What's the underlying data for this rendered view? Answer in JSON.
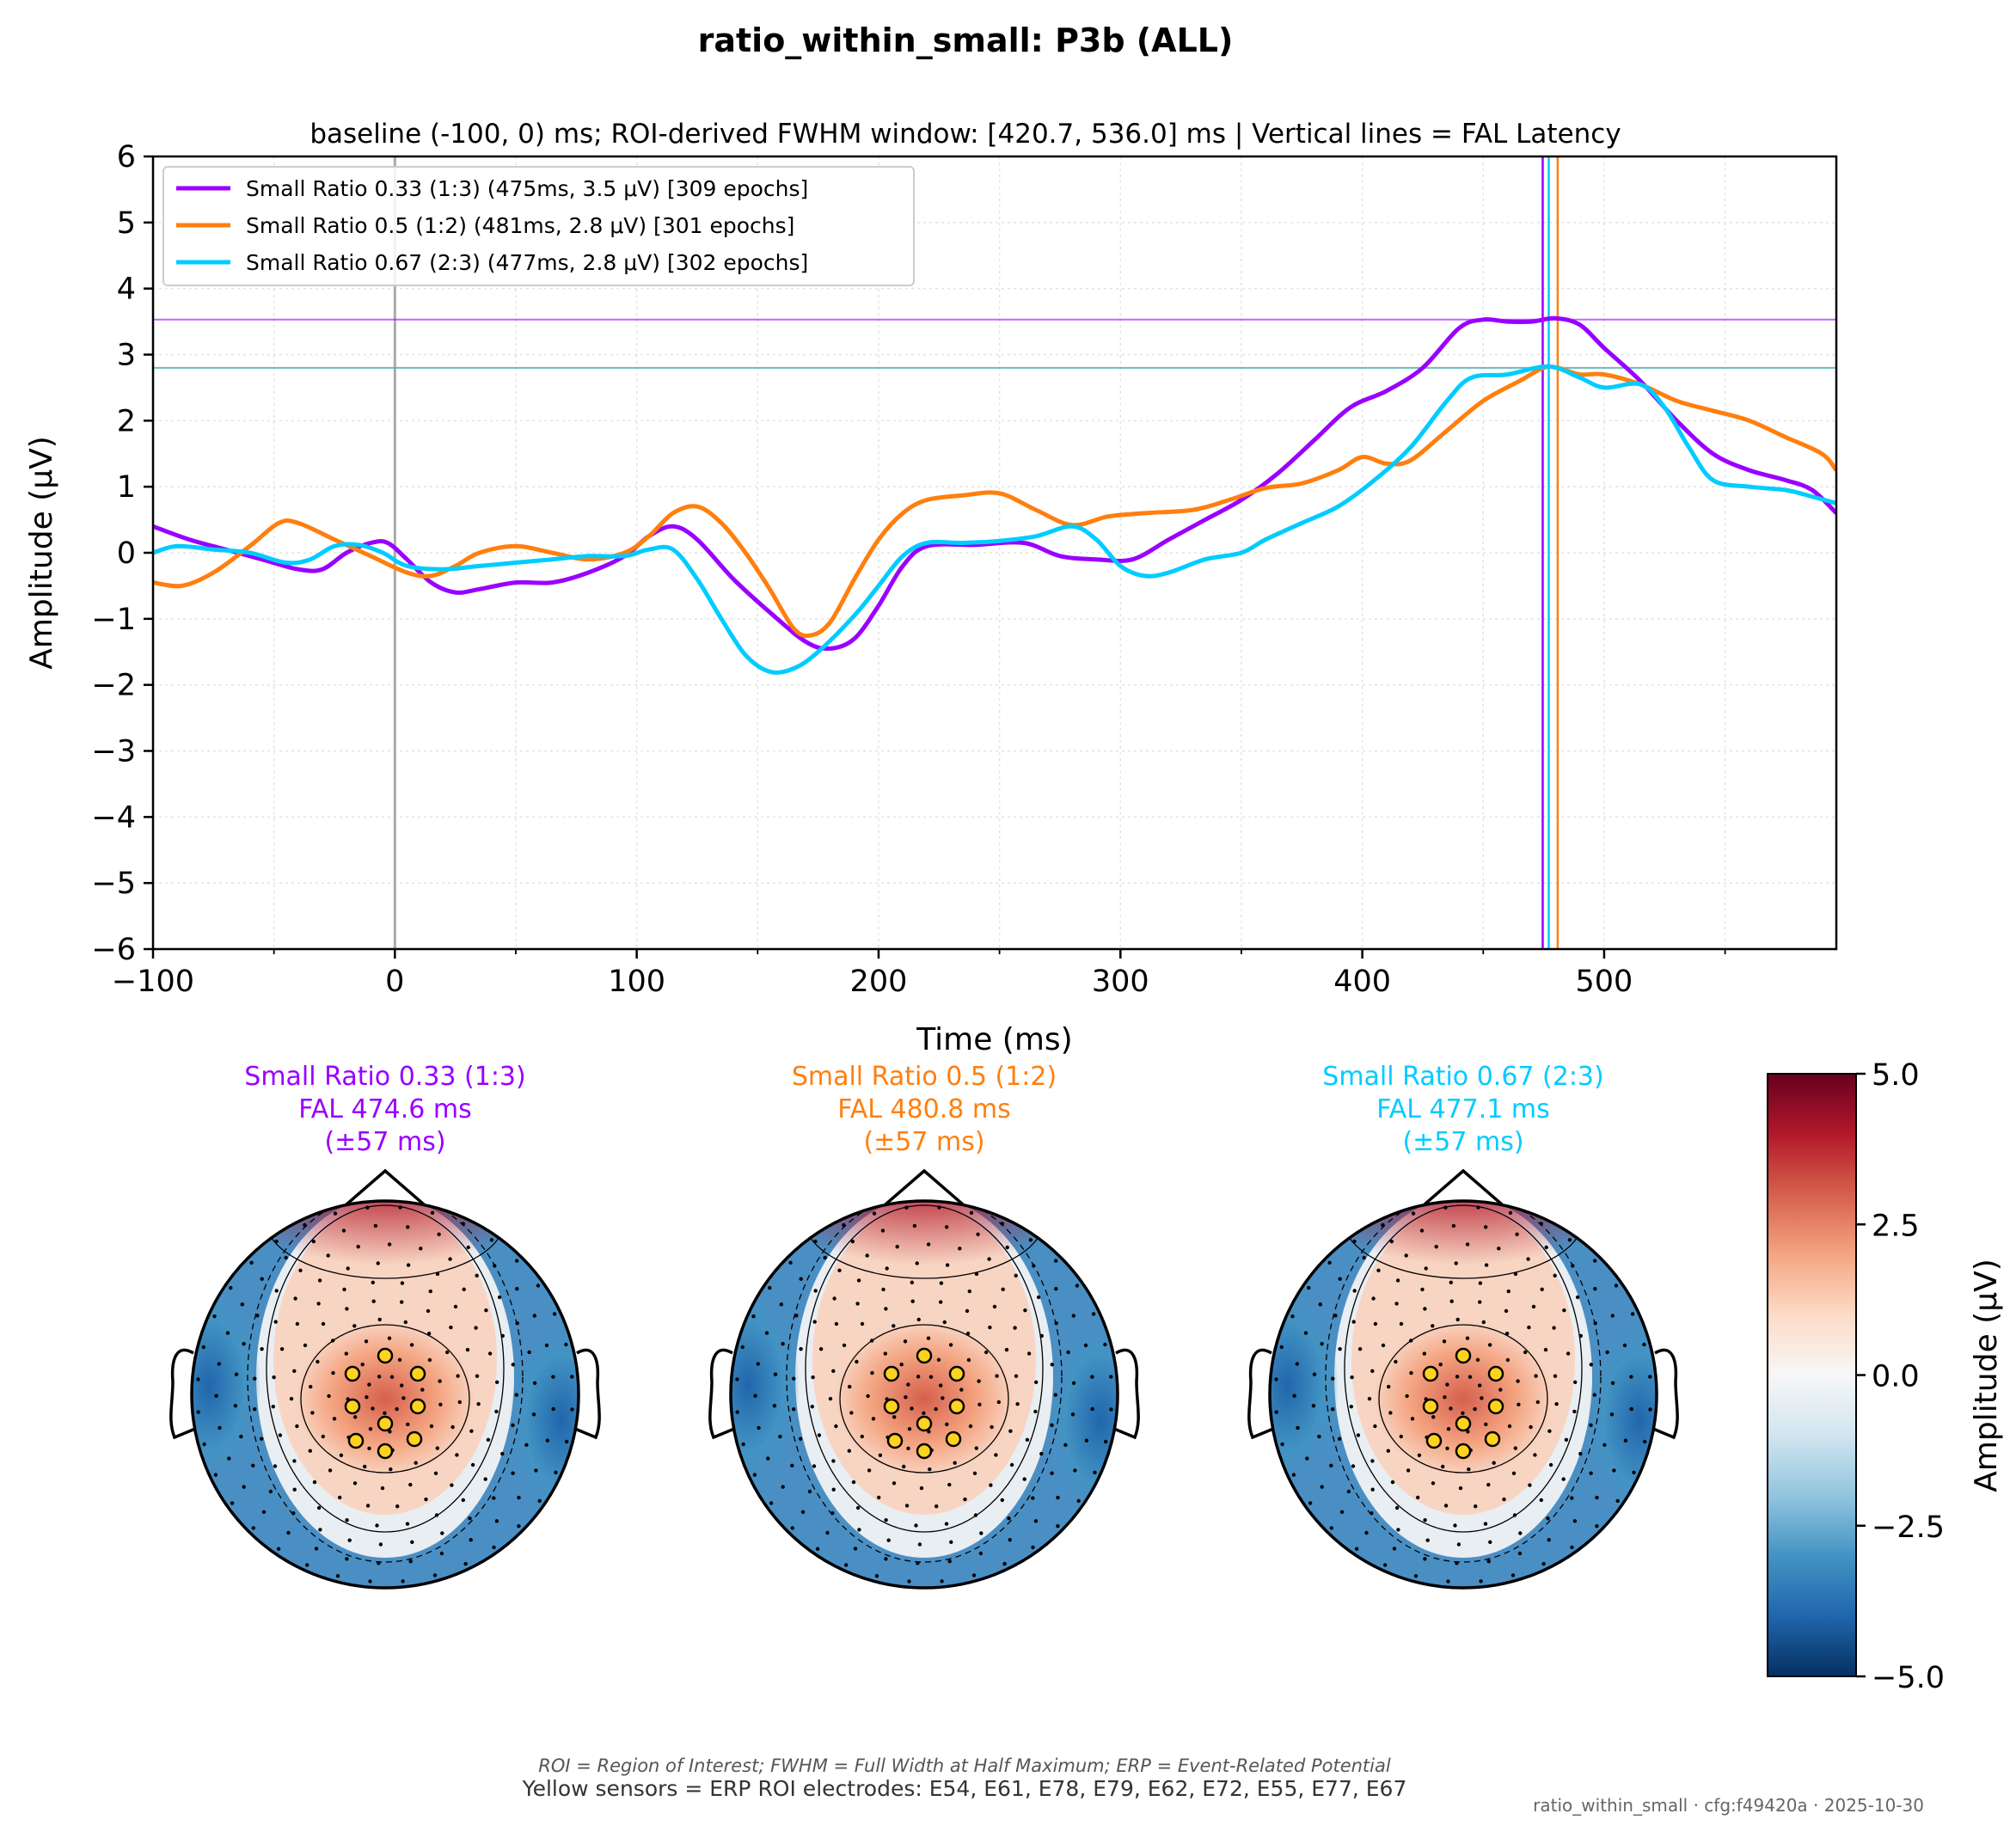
{
  "figure": {
    "suptitle": "ratio_within_small: P3b (ALL)",
    "footnote_line1": "ROI = Region of Interest; FWHM = Full Width at Half Maximum; ERP = Event-Related Potential",
    "footnote_line2": "Yellow sensors = ERP ROI electrodes: E54, E61, E78, E79, E62, E72, E55, E77, E67",
    "stamp": "ratio_within_small · cfg:f49420a · 2025-10-30"
  },
  "chart_data": [
    {
      "type": "line",
      "title": "baseline (-100, 0) ms; ROI-derived FWHM window: [420.7, 536.0] ms | Vertical lines = FAL Latency",
      "xlabel": "Time (ms)",
      "ylabel": "Amplitude (μV)",
      "xlim": [
        -100,
        596
      ],
      "ylim": [
        -6,
        6
      ],
      "x_ticks": [
        -100,
        0,
        100,
        200,
        300,
        400,
        500
      ],
      "x_tick_labels": [
        "−100",
        "0",
        "100",
        "200",
        "300",
        "400",
        "500"
      ],
      "y_ticks": [
        -6,
        -5,
        -4,
        -3,
        -2,
        -1,
        0,
        1,
        2,
        3,
        4,
        5,
        6
      ],
      "y_tick_labels": [
        "−6",
        "−5",
        "−4",
        "−3",
        "−2",
        "−1",
        "0",
        "1",
        "2",
        "3",
        "4",
        "5",
        "6"
      ],
      "grid": true,
      "legend_position": "upper-left",
      "zero_line_x": 0,
      "series": [
        {
          "name": "Small Ratio 0.33 (1:3) (475ms, 3.5 μV) [309 epochs]",
          "color": "#9900ff",
          "peak_latency": 474.6,
          "peak_amplitude": 3.53,
          "points": [
            [
              -100,
              0.4
            ],
            [
              -85,
              0.2
            ],
            [
              -70,
              0.05
            ],
            [
              -55,
              -0.1
            ],
            [
              -40,
              -0.25
            ],
            [
              -30,
              -0.25
            ],
            [
              -20,
              0.0
            ],
            [
              -10,
              0.15
            ],
            [
              -3,
              0.15
            ],
            [
              5,
              -0.1
            ],
            [
              15,
              -0.45
            ],
            [
              25,
              -0.6
            ],
            [
              35,
              -0.55
            ],
            [
              50,
              -0.45
            ],
            [
              65,
              -0.45
            ],
            [
              80,
              -0.3
            ],
            [
              95,
              -0.05
            ],
            [
              105,
              0.25
            ],
            [
              115,
              0.4
            ],
            [
              125,
              0.2
            ],
            [
              140,
              -0.4
            ],
            [
              155,
              -0.9
            ],
            [
              170,
              -1.35
            ],
            [
              180,
              -1.45
            ],
            [
              190,
              -1.3
            ],
            [
              200,
              -0.8
            ],
            [
              210,
              -0.2
            ],
            [
              220,
              0.1
            ],
            [
              240,
              0.12
            ],
            [
              260,
              0.15
            ],
            [
              275,
              -0.05
            ],
            [
              290,
              -0.1
            ],
            [
              305,
              -0.1
            ],
            [
              320,
              0.2
            ],
            [
              335,
              0.5
            ],
            [
              350,
              0.8
            ],
            [
              365,
              1.2
            ],
            [
              380,
              1.7
            ],
            [
              395,
              2.2
            ],
            [
              410,
              2.45
            ],
            [
              425,
              2.8
            ],
            [
              440,
              3.4
            ],
            [
              450,
              3.53
            ],
            [
              460,
              3.5
            ],
            [
              470,
              3.5
            ],
            [
              480,
              3.55
            ],
            [
              490,
              3.45
            ],
            [
              500,
              3.1
            ],
            [
              515,
              2.6
            ],
            [
              530,
              2.0
            ],
            [
              545,
              1.5
            ],
            [
              560,
              1.25
            ],
            [
              575,
              1.1
            ],
            [
              586,
              0.95
            ],
            [
              596,
              0.6
            ]
          ]
        },
        {
          "name": "Small Ratio 0.5 (1:2) (481ms, 2.8 μV) [301 epochs]",
          "color": "#ff7f0e",
          "peak_latency": 480.8,
          "peak_amplitude": 2.8,
          "points": [
            [
              -100,
              -0.45
            ],
            [
              -88,
              -0.5
            ],
            [
              -75,
              -0.3
            ],
            [
              -60,
              0.1
            ],
            [
              -48,
              0.45
            ],
            [
              -40,
              0.45
            ],
            [
              -25,
              0.2
            ],
            [
              -10,
              -0.05
            ],
            [
              5,
              -0.3
            ],
            [
              15,
              -0.35
            ],
            [
              25,
              -0.2
            ],
            [
              35,
              0.0
            ],
            [
              50,
              0.1
            ],
            [
              65,
              0.0
            ],
            [
              80,
              -0.1
            ],
            [
              95,
              0.0
            ],
            [
              105,
              0.25
            ],
            [
              115,
              0.6
            ],
            [
              125,
              0.7
            ],
            [
              135,
              0.45
            ],
            [
              145,
              0.0
            ],
            [
              155,
              -0.55
            ],
            [
              165,
              -1.15
            ],
            [
              172,
              -1.25
            ],
            [
              180,
              -1.05
            ],
            [
              190,
              -0.4
            ],
            [
              200,
              0.2
            ],
            [
              210,
              0.6
            ],
            [
              220,
              0.8
            ],
            [
              235,
              0.87
            ],
            [
              250,
              0.9
            ],
            [
              265,
              0.65
            ],
            [
              280,
              0.42
            ],
            [
              295,
              0.55
            ],
            [
              310,
              0.6
            ],
            [
              330,
              0.65
            ],
            [
              345,
              0.8
            ],
            [
              360,
              0.98
            ],
            [
              375,
              1.05
            ],
            [
              390,
              1.25
            ],
            [
              400,
              1.45
            ],
            [
              410,
              1.35
            ],
            [
              420,
              1.4
            ],
            [
              435,
              1.85
            ],
            [
              450,
              2.3
            ],
            [
              465,
              2.6
            ],
            [
              475,
              2.8
            ],
            [
              481,
              2.8
            ],
            [
              490,
              2.7
            ],
            [
              500,
              2.7
            ],
            [
              515,
              2.55
            ],
            [
              530,
              2.3
            ],
            [
              545,
              2.15
            ],
            [
              560,
              2.0
            ],
            [
              575,
              1.75
            ],
            [
              590,
              1.5
            ],
            [
              596,
              1.25
            ]
          ]
        },
        {
          "name": "Small Ratio 0.67 (2:3) (477ms, 2.8 μV) [302 epochs]",
          "color": "#00ccff",
          "peak_latency": 477.1,
          "peak_amplitude": 2.8,
          "points": [
            [
              -100,
              0.0
            ],
            [
              -90,
              0.1
            ],
            [
              -75,
              0.05
            ],
            [
              -60,
              0.0
            ],
            [
              -45,
              -0.15
            ],
            [
              -35,
              -0.1
            ],
            [
              -25,
              0.1
            ],
            [
              -15,
              0.12
            ],
            [
              -5,
              0.0
            ],
            [
              5,
              -0.2
            ],
            [
              20,
              -0.25
            ],
            [
              35,
              -0.2
            ],
            [
              50,
              -0.15
            ],
            [
              65,
              -0.1
            ],
            [
              80,
              -0.05
            ],
            [
              95,
              -0.05
            ],
            [
              105,
              0.05
            ],
            [
              115,
              0.05
            ],
            [
              125,
              -0.4
            ],
            [
              135,
              -1.0
            ],
            [
              145,
              -1.55
            ],
            [
              155,
              -1.8
            ],
            [
              165,
              -1.75
            ],
            [
              175,
              -1.5
            ],
            [
              190,
              -0.95
            ],
            [
              200,
              -0.5
            ],
            [
              210,
              -0.05
            ],
            [
              220,
              0.15
            ],
            [
              235,
              0.15
            ],
            [
              250,
              0.18
            ],
            [
              265,
              0.25
            ],
            [
              280,
              0.4
            ],
            [
              290,
              0.2
            ],
            [
              300,
              -0.2
            ],
            [
              310,
              -0.35
            ],
            [
              320,
              -0.3
            ],
            [
              335,
              -0.1
            ],
            [
              350,
              0.0
            ],
            [
              360,
              0.2
            ],
            [
              375,
              0.45
            ],
            [
              390,
              0.7
            ],
            [
              405,
              1.1
            ],
            [
              420,
              1.6
            ],
            [
              435,
              2.3
            ],
            [
              445,
              2.65
            ],
            [
              460,
              2.7
            ],
            [
              477,
              2.82
            ],
            [
              490,
              2.65
            ],
            [
              500,
              2.5
            ],
            [
              515,
              2.55
            ],
            [
              525,
              2.2
            ],
            [
              535,
              1.6
            ],
            [
              545,
              1.1
            ],
            [
              560,
              1.0
            ],
            [
              575,
              0.95
            ],
            [
              586,
              0.85
            ],
            [
              596,
              0.75
            ]
          ]
        }
      ]
    },
    {
      "type": "heatmap",
      "subtype": "topomap-colorbar",
      "label": "Amplitude (μV)",
      "range": [
        -5.0,
        5.0
      ],
      "ticks": [
        5.0,
        2.5,
        0.0,
        -2.5,
        -5.0
      ],
      "tick_labels": [
        "5.0",
        "2.5",
        "0.0",
        "−2.5",
        "−5.0"
      ],
      "colormap": "RdBu_r",
      "colormap_stops": [
        "#053061",
        "#2166ac",
        "#4393c3",
        "#92c5de",
        "#d1e5f0",
        "#f7f7f7",
        "#fddbc7",
        "#f4a582",
        "#d6604d",
        "#b2182b",
        "#67001f"
      ]
    }
  ],
  "topomaps": [
    {
      "title": "Small Ratio 0.33 (1:3)",
      "fal": "FAL 474.6 ms",
      "sd": "(±57 ms)",
      "color": "#9900ff"
    },
    {
      "title": "Small Ratio 0.5 (1:2)",
      "fal": "FAL 480.8 ms",
      "sd": "(±57 ms)",
      "color": "#ff7f0e"
    },
    {
      "title": "Small Ratio 0.67 (2:3)",
      "fal": "FAL 477.1 ms",
      "sd": "(±57 ms)",
      "color": "#00ccff"
    }
  ]
}
